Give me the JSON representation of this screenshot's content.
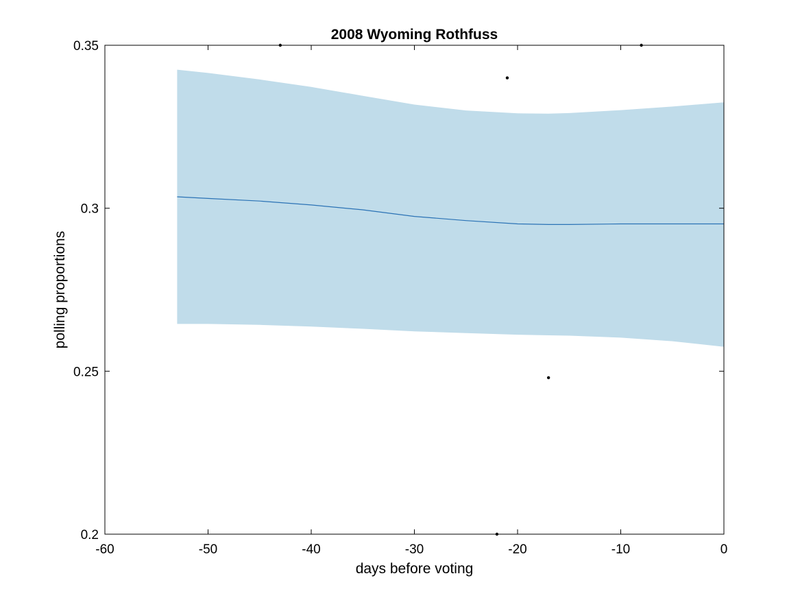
{
  "chart_data": {
    "type": "line",
    "title": "2008 Wyoming Rothfuss",
    "xlabel": "days before voting",
    "ylabel": "polling proportions",
    "xlim": [
      -60,
      0
    ],
    "ylim": [
      0.2,
      0.35
    ],
    "xticks": [
      -60,
      -50,
      -40,
      -30,
      -20,
      -10,
      0
    ],
    "xtick_labels": [
      "-60",
      "-50",
      "-40",
      "-30",
      "-20",
      "-10",
      "0"
    ],
    "yticks": [
      0.2,
      0.25,
      0.3,
      0.35
    ],
    "ytick_labels": [
      "0.2",
      "0.25",
      "0.3",
      "0.35"
    ],
    "grid": false,
    "colors": {
      "trend_line": "#2a72b5",
      "band_fill": "#c0dcea",
      "points": "#000000",
      "axes": "#000000"
    },
    "trend": {
      "x": [
        -53,
        -50,
        -45,
        -40,
        -35,
        -30,
        -25,
        -20,
        -17,
        -15,
        -10,
        -5,
        0
      ],
      "y": [
        0.3035,
        0.303,
        0.3022,
        0.301,
        0.2995,
        0.2975,
        0.2962,
        0.2952,
        0.295,
        0.295,
        0.2952,
        0.2952,
        0.2952
      ]
    },
    "band": {
      "x": [
        -53,
        -50,
        -45,
        -40,
        -35,
        -30,
        -25,
        -20,
        -17,
        -15,
        -10,
        -5,
        0
      ],
      "upper": [
        0.3425,
        0.3415,
        0.3395,
        0.3372,
        0.3345,
        0.3318,
        0.33,
        0.3291,
        0.329,
        0.3292,
        0.3301,
        0.3312,
        0.3325
      ],
      "lower": [
        0.2645,
        0.2645,
        0.2642,
        0.2637,
        0.263,
        0.2622,
        0.2617,
        0.2612,
        0.261,
        0.2609,
        0.2603,
        0.2592,
        0.2575
      ]
    },
    "points": {
      "x": [
        -43,
        -8,
        -21,
        -17,
        -22
      ],
      "y": [
        0.35,
        0.35,
        0.34,
        0.248,
        0.2
      ]
    }
  }
}
